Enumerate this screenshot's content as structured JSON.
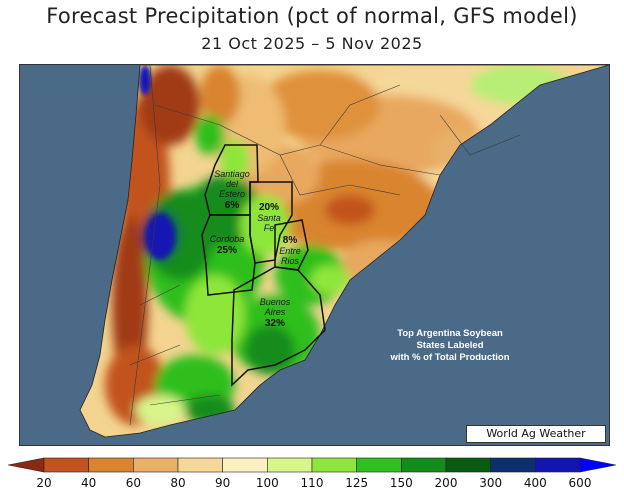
{
  "title": "Forecast Precipitation (pct of normal, GFS model)",
  "subtitle": "21 Oct 2025 – 5 Nov 2025",
  "note": {
    "line1": "Top Argentina Soybean",
    "line2": "States Labeled",
    "line3": "with % of Total Production"
  },
  "credit": "World Ag Weather",
  "states": [
    {
      "name_lines": [
        "Santiago",
        "del",
        "Estero"
      ],
      "pct": "6%"
    },
    {
      "name_lines": [
        "Santa",
        "Fe"
      ],
      "pct": "20%"
    },
    {
      "name_lines": [
        "Cordoba"
      ],
      "pct": "25%"
    },
    {
      "name_lines": [
        "Entre",
        "Rios"
      ],
      "pct": "8%"
    },
    {
      "name_lines": [
        "Buenos",
        "Aires"
      ],
      "pct": "32%"
    }
  ],
  "legend": {
    "ticks": [
      "20",
      "40",
      "60",
      "80",
      "90",
      "100",
      "110",
      "125",
      "150",
      "200",
      "300",
      "400",
      "600"
    ],
    "colors": [
      "#8a2a12",
      "#c2521e",
      "#d9842e",
      "#e8b068",
      "#f5d79a",
      "#fbf0bf",
      "#d8f58a",
      "#8ee63a",
      "#2fbf1e",
      "#128c1a",
      "#0a5a14",
      "#0c2f6e",
      "#1414b4",
      "#0000ff"
    ]
  },
  "colors": {
    "ocean": "#4a6a87",
    "land_dry": "#e8a85e",
    "land_neutral": "#f3d490",
    "wet": "#3cc22a"
  }
}
